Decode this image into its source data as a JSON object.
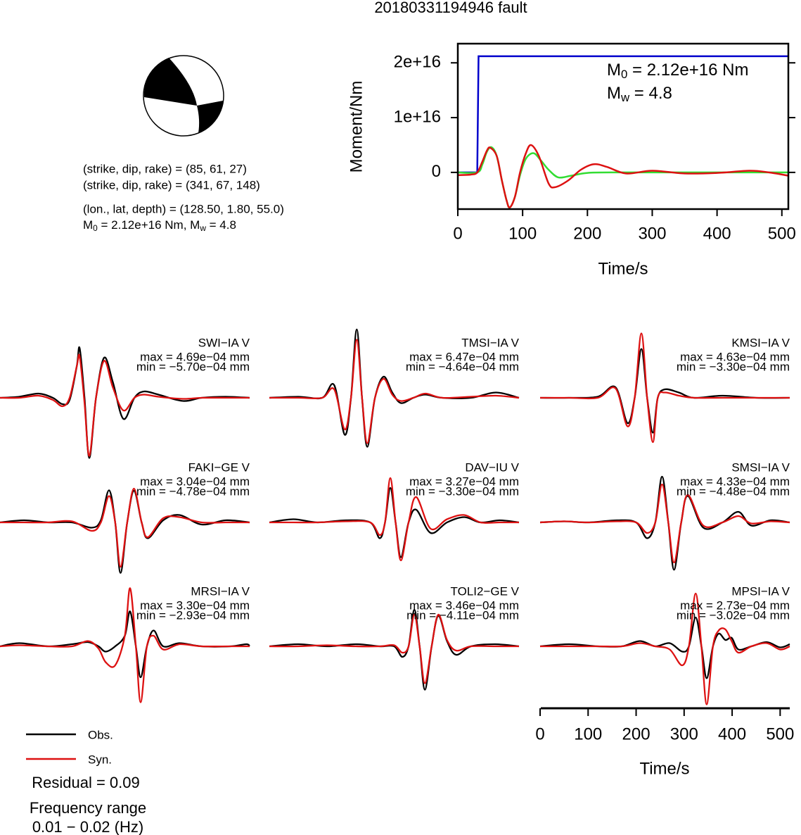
{
  "title": "20180331194946 fault",
  "info_lines": [
    "(strike, dip, rake) = (85, 61, 27)",
    "(strike, dip, rake) = (341, 67, 148)",
    "(lon., lat, depth) = (128.50, 1.80, 55.0)"
  ],
  "info_moment": [
    {
      "text": "M"
    },
    {
      "sub": "0"
    },
    {
      "text": " = 2.12e+16 Nm, M"
    },
    {
      "sub": "w"
    },
    {
      "text": " = 4.8"
    }
  ],
  "legend": [
    {
      "name": "Obs.",
      "color": "#000000"
    },
    {
      "name": "Syn.",
      "color": "#dd1111"
    }
  ],
  "residual": "Residual = 0.09",
  "frequency_label": "Frequency range",
  "frequency_range": "0.01 − 0.02 (Hz)",
  "chart_data": [
    {
      "type": "line",
      "xlabel": "Time/s",
      "ylabel": "Moment/Nm",
      "xlim": [
        0,
        510
      ],
      "xticks": [
        0,
        100,
        200,
        300,
        400,
        500
      ],
      "ylim": [
        -6700000000000000.0,
        2.35e+16
      ],
      "yticks": [
        0,
        {
          "value": 1e+16,
          "label": "1e+16"
        },
        {
          "value": 2e+16,
          "label": "2e+16"
        }
      ],
      "annotations": [
        [
          {
            "text": "M"
          },
          {
            "sub": "0"
          },
          {
            "text": " = 2.12e+16 Nm"
          }
        ],
        [
          {
            "text": "M"
          },
          {
            "sub": "w"
          },
          {
            "text": " = 4.8"
          }
        ]
      ],
      "series": [
        {
          "color": "#0000cc",
          "x": [
            0,
            30,
            32,
            510
          ],
          "values": [
            0,
            0,
            2.12e+16,
            2.12e+16
          ]
        },
        {
          "color": "#33dd33",
          "x": [
            0,
            30,
            38,
            45,
            52,
            60,
            68,
            75,
            80,
            88,
            96,
            105,
            117,
            128,
            140,
            155,
            175,
            200,
            250,
            510
          ],
          "values": [
            0,
            0,
            1500000000000000.0,
            3800000000000000.0,
            4600000000000000.0,
            3000000000000000.0,
            -1500000000000000.0,
            -5000000000000000.0,
            -6400000000000000.0,
            -4500000000000000.0,
            -500000000000000.0,
            2500000000000000.0,
            3500000000000000.0,
            2200000000000000.0,
            500000000000000.0,
            -900000000000000.0,
            -600000000000000.0,
            -100000000000000.0,
            0,
            0
          ]
        },
        {
          "color": "#dd1111",
          "x": [
            0,
            20,
            30,
            38,
            45,
            50,
            60,
            68,
            75,
            80,
            88,
            96,
            105,
            113,
            125,
            140,
            150,
            170,
            190,
            210,
            230,
            260,
            300,
            350,
            400,
            450,
            480,
            510
          ],
          "values": [
            -500000000000000.0,
            -400000000000000.0,
            0,
            2000000000000000.0,
            4000000000000000.0,
            4500000000000000.0,
            3000000000000000.0,
            -1500000000000000.0,
            -5000000000000000.0,
            -6400000000000000.0,
            -4500000000000000.0,
            0,
            3500000000000000.0,
            5000000000000000.0,
            3000000000000000.0,
            -2000000000000000.0,
            -2700000000000000.0,
            -1500000000000000.0,
            500000000000000.0,
            1500000000000000.0,
            1000000000000000.0,
            -200000000000000.0,
            300000000000000.0,
            -200000000000000.0,
            -100000000000000.0,
            300000000000000.0,
            0,
            -600000000000000.0
          ]
        }
      ]
    },
    {
      "type": "line",
      "title": "SWI−IA V",
      "max_label": "max = 4.69e−04 mm",
      "min_label": "min = −5.70e−04 mm",
      "xlim": [
        0,
        520
      ],
      "x": [
        0,
        40,
        80,
        110,
        130,
        145,
        160,
        166,
        176,
        186,
        200,
        217,
        235,
        257,
        280,
        300,
        330,
        381,
        420,
        470,
        520
      ],
      "series": [
        {
          "values": [
            0,
            1e-05,
            4e-05,
            0,
            -6e-05,
            -2e-05,
            0.0003,
            0.000469,
            0,
            -0.00057,
            0,
            0.00038,
            0.00015,
            -0.0002,
            0,
            6e-05,
            3e-05,
            -3e-05,
            0,
            1e-05,
            0
          ]
        },
        {
          "values": [
            0,
            0,
            2e-05,
            -2e-05,
            -8e-05,
            0,
            0.0003,
            0.00039,
            -5e-05,
            -0.00055,
            0,
            0.00035,
            0.0001,
            -0.00012,
            0,
            3e-05,
            1e-05,
            -1e-05,
            0,
            0,
            0
          ]
        }
      ]
    },
    {
      "type": "line",
      "title": "TMSI−IA V",
      "max_label": "max = 6.47e−04 mm",
      "min_label": "min = −4.64e−04 mm",
      "xlim": [
        0,
        520
      ],
      "x": [
        0,
        60,
        110,
        135,
        157,
        170,
        182,
        193,
        204,
        220,
        238,
        256,
        274,
        300,
        325,
        360,
        420,
        472,
        520
      ],
      "series": [
        {
          "values": [
            0,
            1e-05,
            0,
            0.00012,
            -0.00035,
            0,
            0.000647,
            0,
            -0.000464,
            0,
            0.0002,
            5e-05,
            -5e-05,
            0,
            3e-05,
            0,
            0,
            5e-05,
            0
          ]
        },
        {
          "values": [
            0,
            0,
            0,
            8e-05,
            -0.0003,
            0,
            0.00055,
            0,
            -0.00043,
            0,
            0.00018,
            3e-05,
            -3e-05,
            0,
            4e-05,
            0,
            1e-05,
            2e-05,
            0
          ]
        }
      ]
    },
    {
      "type": "line",
      "title": "KMSI−IA V",
      "max_label": "max = 4.63e−04 mm",
      "min_label": "min = −3.30e−04 mm",
      "xlim": [
        0,
        520
      ],
      "x": [
        0,
        60,
        120,
        157,
        182,
        197,
        211,
        223,
        235,
        245,
        260,
        289,
        320,
        380,
        450,
        520
      ],
      "series": [
        {
          "values": [
            0,
            0,
            1e-05,
            0.0001,
            -0.00024,
            0,
            0.000463,
            0,
            -0.00033,
            0,
            8e-05,
            5e-05,
            0,
            2e-05,
            0,
            0
          ]
        },
        {
          "values": [
            0,
            0,
            0,
            9e-05,
            -0.00027,
            0,
            0.00061,
            0,
            -0.00042,
            0,
            5e-05,
            2e-05,
            0,
            0,
            0,
            0
          ]
        }
      ]
    },
    {
      "type": "line",
      "title": "FAKI−GE V",
      "max_label": "max = 3.04e−04 mm",
      "min_label": "min = −4.78e−04 mm",
      "xlim": [
        0,
        520
      ],
      "x": [
        0,
        50,
        100,
        150,
        191,
        210,
        227,
        240,
        251,
        265,
        279,
        295,
        308,
        340,
        374,
        420,
        470,
        520
      ],
      "series": [
        {
          "values": [
            0,
            2e-05,
            0,
            0,
            -5e-05,
            2e-05,
            0.000304,
            0,
            -0.000478,
            0,
            0.0003,
            0,
            -0.00015,
            2e-05,
            7e-05,
            -2e-05,
            2e-05,
            0
          ]
        },
        {
          "values": [
            0,
            0,
            0,
            1e-05,
            -8e-05,
            0,
            0.00025,
            0,
            -0.00042,
            0,
            0.00032,
            0,
            -0.00014,
            4e-05,
            5e-05,
            0,
            0,
            0
          ]
        }
      ]
    },
    {
      "type": "line",
      "title": "DAV−IU V",
      "max_label": "max = 3.27e−04 mm",
      "min_label": "min = −3.30e−04 mm",
      "xlim": [
        0,
        520
      ],
      "x": [
        0,
        50,
        100,
        160,
        210,
        230,
        241,
        252,
        263,
        274,
        290,
        306,
        336,
        370,
        406,
        440,
        480,
        520
      ],
      "series": [
        {
          "values": [
            0,
            3e-05,
            0,
            2e-05,
            0,
            -0.00015,
            0,
            0.000327,
            0,
            -0.00033,
            0,
            0.00012,
            -0.0001,
            0,
            5e-05,
            0,
            2e-05,
            0
          ]
        },
        {
          "values": [
            0,
            0,
            0,
            1e-05,
            0,
            -0.00012,
            0,
            0.00042,
            0,
            -0.00036,
            0,
            0.00024,
            -6e-05,
            3e-05,
            7e-05,
            0,
            0,
            0
          ]
        }
      ]
    },
    {
      "type": "line",
      "title": "SMSI−IA V",
      "max_label": "max = 4.33e−04 mm",
      "min_label": "min = −4.48e−04 mm",
      "xlim": [
        0,
        520
      ],
      "x": [
        0,
        50,
        100,
        160,
        200,
        223,
        240,
        254,
        267,
        279,
        294,
        308,
        340,
        380,
        413,
        440,
        480,
        520
      ],
      "series": [
        {
          "values": [
            0,
            1e-05,
            0,
            2e-05,
            0,
            -0.00015,
            0,
            0.000433,
            0,
            -0.000448,
            0,
            0.00025,
            -5e-05,
            0,
            0.0001,
            -3e-05,
            2e-05,
            0
          ]
        },
        {
          "values": [
            0,
            1e-05,
            0,
            1e-05,
            0,
            -0.0001,
            0,
            0.00036,
            0,
            -0.00038,
            0,
            0.00026,
            -3e-05,
            0,
            6e-05,
            -1e-05,
            1e-05,
            0
          ]
        }
      ]
    },
    {
      "type": "line",
      "title": "MRSI−IA V",
      "max_label": "max = 3.30e−04 mm",
      "min_label": "min = −2.93e−04 mm",
      "xlim": [
        0,
        520
      ],
      "x": [
        0,
        40,
        100,
        150,
        183,
        205,
        220,
        240,
        260,
        271,
        283,
        293,
        306,
        320,
        340,
        374,
        420,
        480,
        513,
        520
      ],
      "series": [
        {
          "values": [
            0,
            3e-05,
            0,
            2e-05,
            4e-05,
            0,
            -5e-05,
            0,
            0.0001,
            0.00033,
            0,
            -0.000293,
            0,
            0.00015,
            0,
            3e-05,
            0,
            0,
            2e-05,
            0
          ]
        },
        {
          "values": [
            0,
            1e-05,
            0,
            0,
            5e-05,
            -2e-05,
            -0.00015,
            -0.00018,
            0.0001,
            0.00055,
            0,
            -0.00053,
            0,
            0.0001,
            -3e-05,
            2e-05,
            0,
            0,
            0,
            0
          ]
        }
      ]
    },
    {
      "type": "line",
      "title": "TOLI2−GE V",
      "max_label": "max = 3.46e−04 mm",
      "min_label": "min = −4.11e−04 mm",
      "xlim": [
        0,
        520
      ],
      "x": [
        0,
        60,
        120,
        180,
        230,
        260,
        277,
        290,
        302,
        313,
        324,
        338,
        352,
        370,
        389,
        420,
        470,
        520
      ],
      "series": [
        {
          "values": [
            0,
            2e-05,
            0,
            2e-05,
            0,
            0,
            -0.0001,
            0,
            0.000346,
            0,
            -0.000411,
            0,
            0.00029,
            5e-05,
            -8e-05,
            0,
            2e-05,
            0
          ]
        },
        {
          "values": [
            0,
            0,
            1e-05,
            0,
            0,
            1e-05,
            -6e-05,
            0,
            0.0003,
            0,
            -0.00035,
            0,
            0.0003,
            6e-05,
            -4e-05,
            0,
            0,
            0
          ]
        }
      ]
    },
    {
      "type": "line",
      "title": "MPSI−IA V",
      "max_label": "max = 2.73e−04 mm",
      "min_label": "min = −3.02e−04 mm",
      "xlim": [
        0,
        520
      ],
      "xticks": [
        0,
        100,
        200,
        300,
        400,
        500
      ],
      "xlabel": "Time/s",
      "x": [
        0,
        60,
        120,
        170,
        208,
        240,
        270,
        296,
        310,
        324,
        336,
        347,
        360,
        372,
        386,
        399,
        413,
        440,
        472,
        500,
        520
      ],
      "series": [
        {
          "values": [
            0,
            2e-05,
            0,
            0,
            5e-05,
            0,
            3e-05,
            -5e-05,
            0,
            0.000273,
            0,
            -0.000302,
            0,
            0.00012,
            6e-05,
            8e-05,
            -3e-05,
            0,
            4e-05,
            -1e-05,
            2e-05
          ]
        },
        {
          "values": [
            0,
            0,
            0,
            0,
            3e-05,
            0,
            -3e-05,
            -0.00018,
            0,
            0.0005,
            0,
            -0.00055,
            0,
            0.00015,
            0.00016,
            5e-05,
            -6e-05,
            0,
            3e-05,
            -3e-05,
            0
          ]
        }
      ]
    }
  ]
}
